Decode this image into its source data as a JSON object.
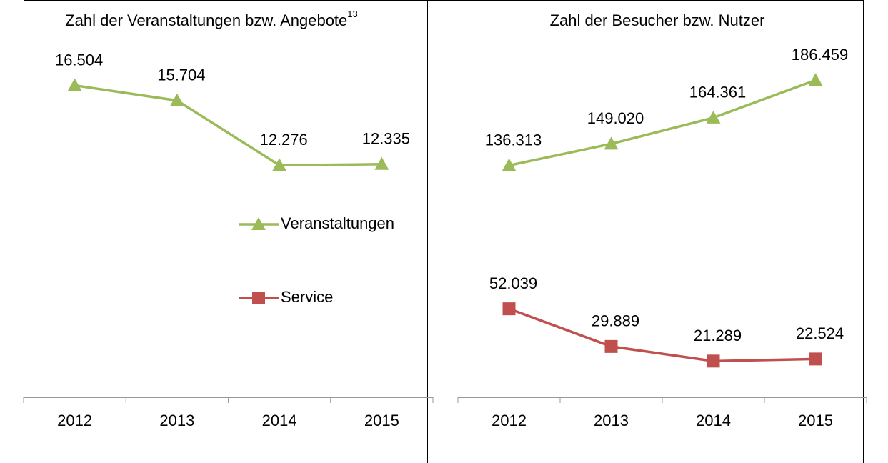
{
  "chart_data": [
    {
      "type": "line",
      "title": "Zahl der Veranstaltungen bzw. Angebote",
      "title_note": "13",
      "categories": [
        "2012",
        "2013",
        "2014",
        "2015"
      ],
      "series": [
        {
          "name": "Veranstaltungen",
          "color": "#9bbb59",
          "marker": "triangle",
          "values": [
            16504,
            15704,
            12276,
            12335
          ],
          "value_labels": [
            "16.504",
            "15.704",
            "12.276",
            "12.335"
          ]
        }
      ],
      "ylim": [
        0,
        18000
      ]
    },
    {
      "type": "line",
      "title": "Zahl der Besucher bzw. Nutzer",
      "categories": [
        "2012",
        "2013",
        "2014",
        "2015"
      ],
      "series": [
        {
          "name": "Veranstaltungen",
          "color": "#9bbb59",
          "marker": "triangle",
          "values": [
            136313,
            149020,
            164361,
            186459
          ],
          "value_labels": [
            "136.313",
            "149.020",
            "164.361",
            "186.459"
          ]
        },
        {
          "name": "Service",
          "color": "#c0504d",
          "marker": "square",
          "values": [
            52039,
            29889,
            21289,
            22524
          ],
          "value_labels": [
            "52.039",
            "29.889",
            "21.289",
            "22.524"
          ]
        }
      ],
      "ylim": [
        0,
        200000
      ]
    }
  ]
}
